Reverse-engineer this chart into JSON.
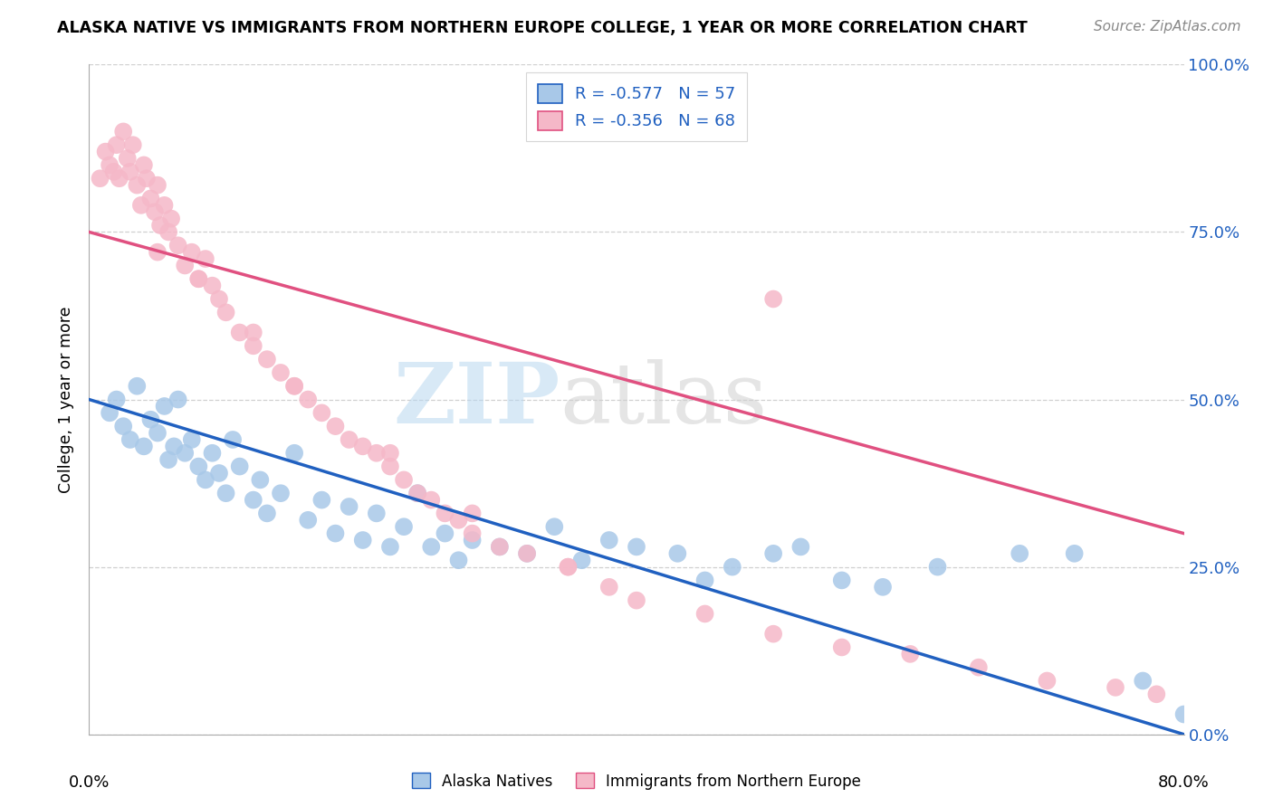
{
  "title": "ALASKA NATIVE VS IMMIGRANTS FROM NORTHERN EUROPE COLLEGE, 1 YEAR OR MORE CORRELATION CHART",
  "source": "Source: ZipAtlas.com",
  "ylabel": "College, 1 year or more",
  "xlim": [
    0.0,
    80.0
  ],
  "ylim": [
    0.0,
    100.0
  ],
  "ytick_vals": [
    0.0,
    25.0,
    50.0,
    75.0,
    100.0
  ],
  "blue_R": -0.577,
  "blue_N": 57,
  "pink_R": -0.356,
  "pink_N": 68,
  "blue_color": "#a8c8e8",
  "pink_color": "#f5b8c8",
  "blue_line_color": "#2060c0",
  "pink_line_color": "#e05080",
  "background_color": "#ffffff",
  "grid_color": "#d0d0d0",
  "blue_line_y0": 50.0,
  "blue_line_y1": 0.0,
  "pink_line_y0": 75.0,
  "pink_line_y1": 30.0,
  "blue_x": [
    1.5,
    2.0,
    2.5,
    3.0,
    3.5,
    4.0,
    4.5,
    5.0,
    5.5,
    5.8,
    6.2,
    6.5,
    7.0,
    7.5,
    8.0,
    8.5,
    9.0,
    9.5,
    10.0,
    10.5,
    11.0,
    12.0,
    12.5,
    13.0,
    14.0,
    15.0,
    16.0,
    17.0,
    18.0,
    19.0,
    20.0,
    21.0,
    22.0,
    23.0,
    24.0,
    25.0,
    26.0,
    27.0,
    28.0,
    30.0,
    32.0,
    34.0,
    36.0,
    38.0,
    40.0,
    43.0,
    45.0,
    47.0,
    50.0,
    52.0,
    55.0,
    58.0,
    62.0,
    68.0,
    72.0,
    77.0,
    80.0
  ],
  "blue_y": [
    48.0,
    50.0,
    46.0,
    44.0,
    52.0,
    43.0,
    47.0,
    45.0,
    49.0,
    41.0,
    43.0,
    50.0,
    42.0,
    44.0,
    40.0,
    38.0,
    42.0,
    39.0,
    36.0,
    44.0,
    40.0,
    35.0,
    38.0,
    33.0,
    36.0,
    42.0,
    32.0,
    35.0,
    30.0,
    34.0,
    29.0,
    33.0,
    28.0,
    31.0,
    36.0,
    28.0,
    30.0,
    26.0,
    29.0,
    28.0,
    27.0,
    31.0,
    26.0,
    29.0,
    28.0,
    27.0,
    23.0,
    25.0,
    27.0,
    28.0,
    23.0,
    22.0,
    25.0,
    27.0,
    27.0,
    8.0,
    3.0
  ],
  "pink_x": [
    0.8,
    1.2,
    1.5,
    1.8,
    2.0,
    2.2,
    2.5,
    2.8,
    3.0,
    3.2,
    3.5,
    3.8,
    4.0,
    4.2,
    4.5,
    4.8,
    5.0,
    5.2,
    5.5,
    5.8,
    6.0,
    6.5,
    7.0,
    7.5,
    8.0,
    8.5,
    9.0,
    9.5,
    10.0,
    11.0,
    12.0,
    13.0,
    14.0,
    15.0,
    16.0,
    17.0,
    18.0,
    19.0,
    20.0,
    21.0,
    22.0,
    23.0,
    24.0,
    25.0,
    26.0,
    27.0,
    28.0,
    30.0,
    32.0,
    35.0,
    38.0,
    40.0,
    45.0,
    50.0,
    55.0,
    60.0,
    65.0,
    70.0,
    75.0,
    78.0,
    35.0,
    28.0,
    22.0,
    50.0,
    15.0,
    12.0,
    8.0,
    5.0
  ],
  "pink_y": [
    83.0,
    87.0,
    85.0,
    84.0,
    88.0,
    83.0,
    90.0,
    86.0,
    84.0,
    88.0,
    82.0,
    79.0,
    85.0,
    83.0,
    80.0,
    78.0,
    82.0,
    76.0,
    79.0,
    75.0,
    77.0,
    73.0,
    70.0,
    72.0,
    68.0,
    71.0,
    67.0,
    65.0,
    63.0,
    60.0,
    58.0,
    56.0,
    54.0,
    52.0,
    50.0,
    48.0,
    46.0,
    44.0,
    43.0,
    42.0,
    40.0,
    38.0,
    36.0,
    35.0,
    33.0,
    32.0,
    30.0,
    28.0,
    27.0,
    25.0,
    22.0,
    20.0,
    18.0,
    15.0,
    13.0,
    12.0,
    10.0,
    8.0,
    7.0,
    6.0,
    25.0,
    33.0,
    42.0,
    65.0,
    52.0,
    60.0,
    68.0,
    72.0
  ]
}
